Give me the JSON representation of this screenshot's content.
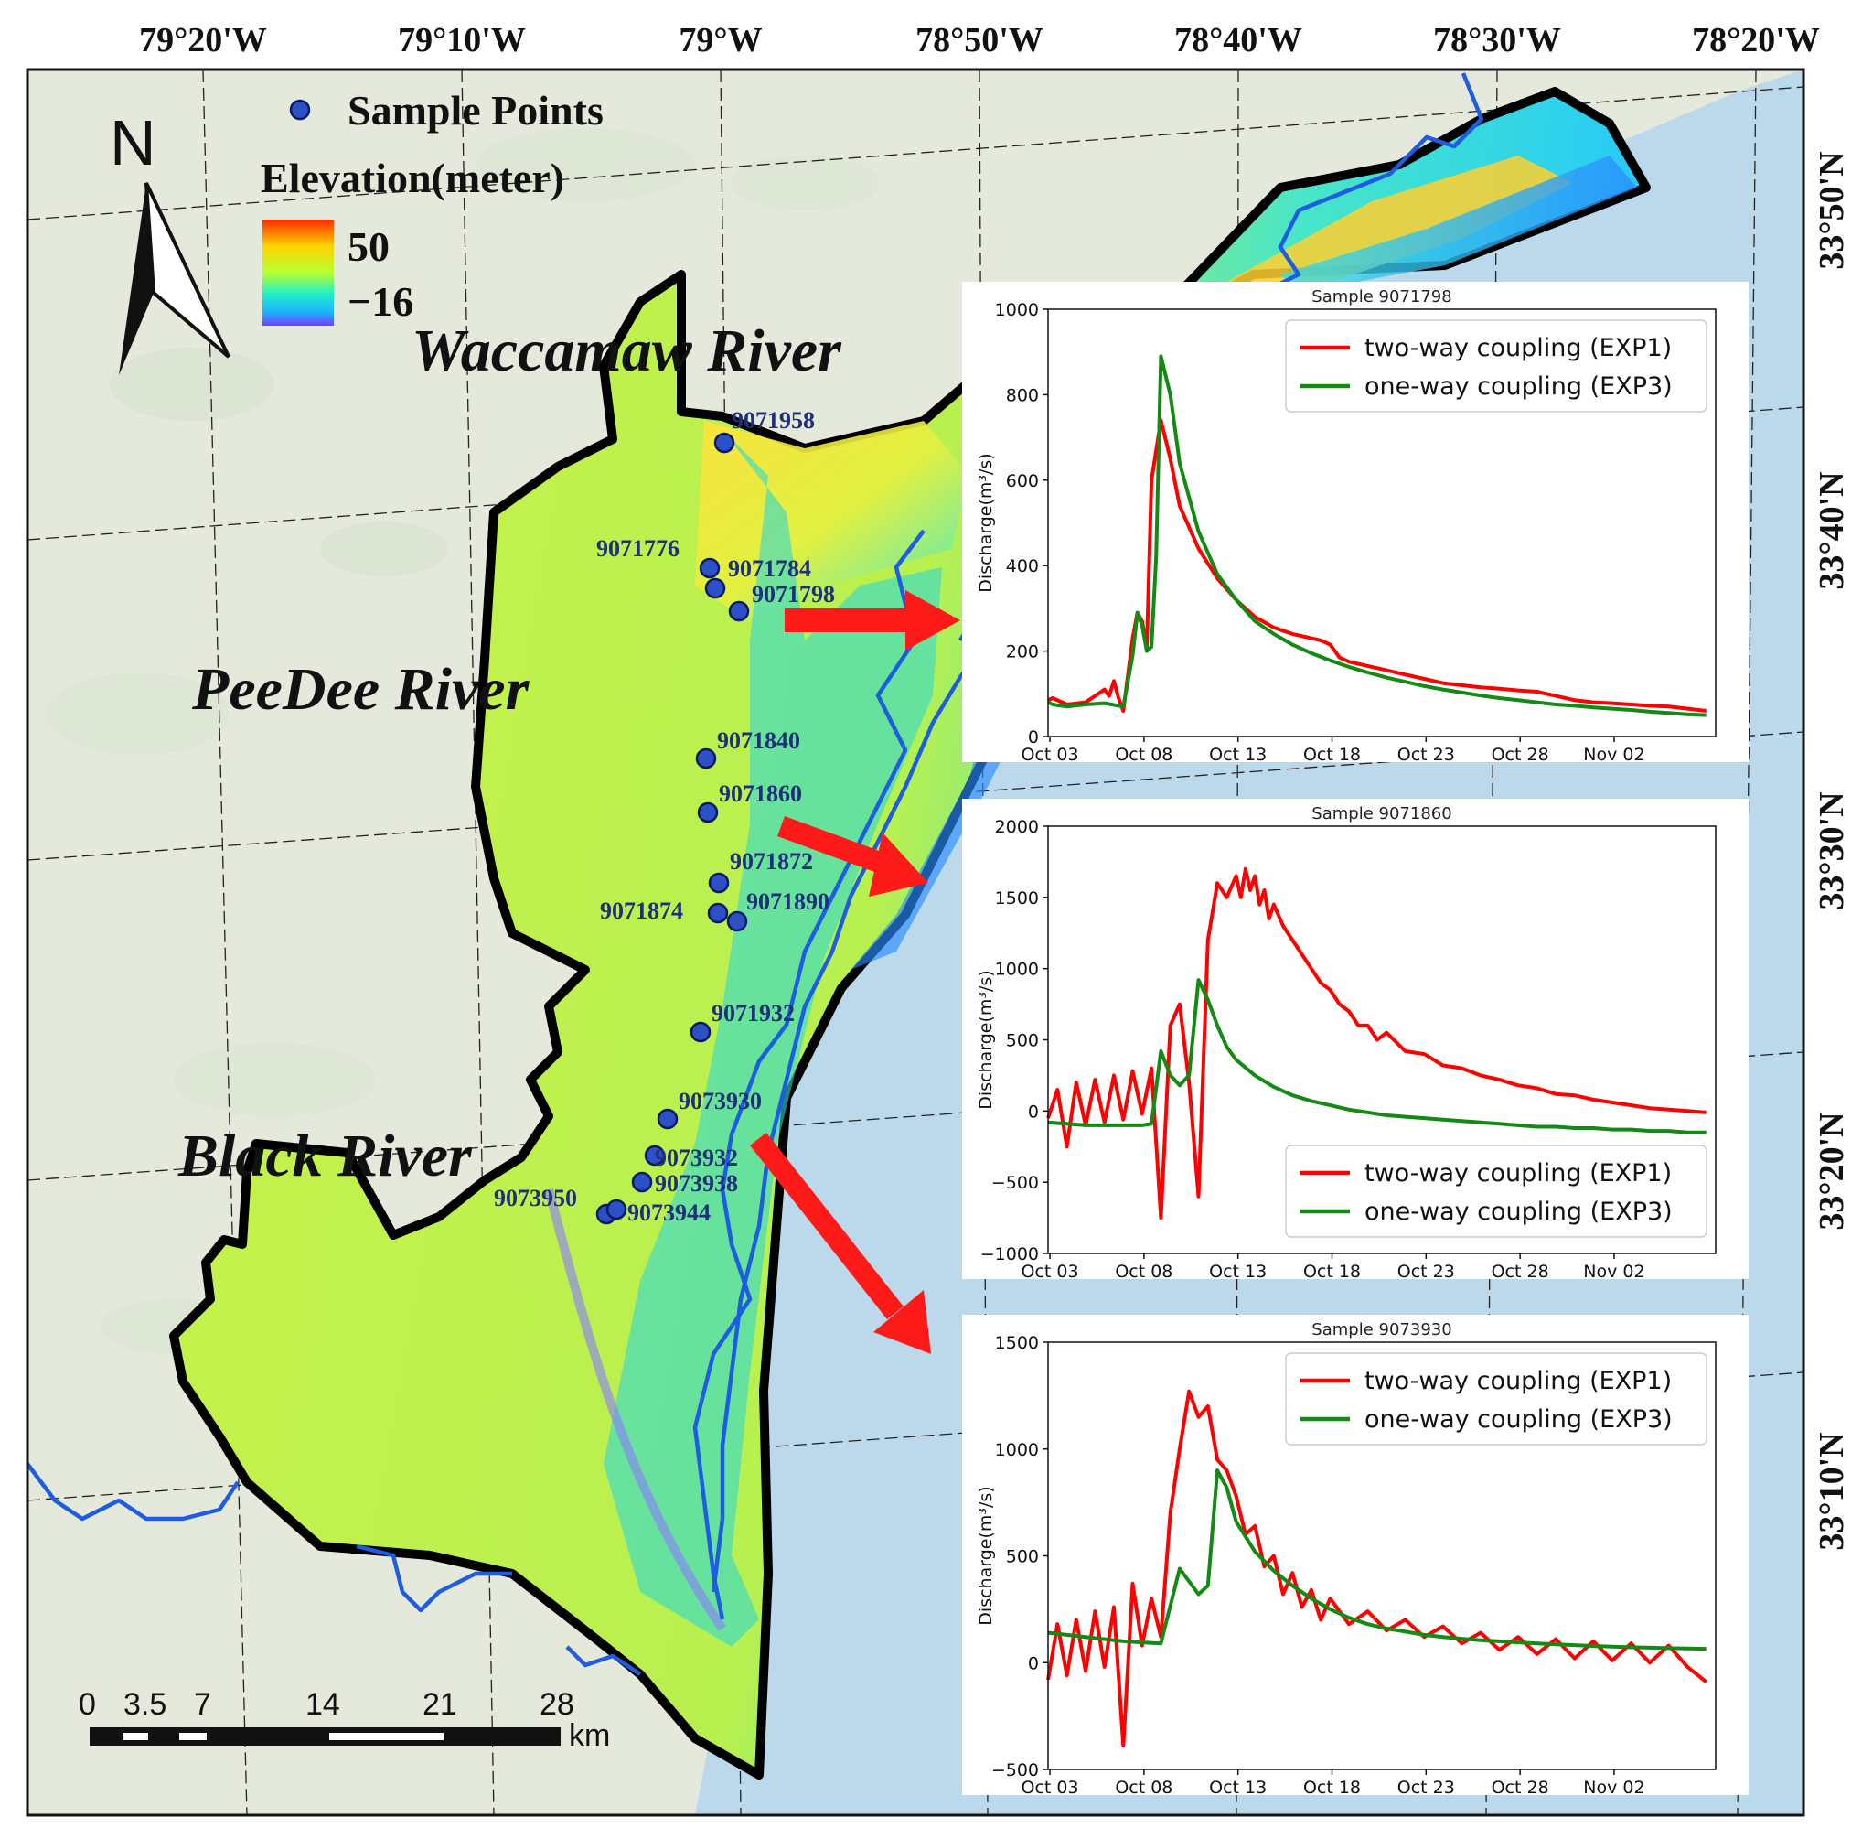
{
  "graticule": {
    "lon_labels": [
      "79°20'W",
      "79°10'W",
      "79°W",
      "78°50'W",
      "78°40'W",
      "78°30'W",
      "78°20'W"
    ],
    "lat_labels": [
      "33°50'N",
      "33°40'N",
      "33°30'N",
      "33°20'N",
      "33°10'N"
    ]
  },
  "legend": {
    "points_label": "Sample Points",
    "elevation_title": "Elevation(meter)",
    "elev_max": "50",
    "elev_min": "−16"
  },
  "rivers": [
    "Waccamaw River",
    "PeeDee River",
    "Black River"
  ],
  "sample_points": [
    {
      "id": "9071958"
    },
    {
      "id": "9071776"
    },
    {
      "id": "9071784"
    },
    {
      "id": "9071798"
    },
    {
      "id": "9071840"
    },
    {
      "id": "9071860"
    },
    {
      "id": "9071872"
    },
    {
      "id": "9071874"
    },
    {
      "id": "9071890"
    },
    {
      "id": "9071932"
    },
    {
      "id": "9073930"
    },
    {
      "id": "9073932"
    },
    {
      "id": "9073938"
    },
    {
      "id": "9073950"
    },
    {
      "id": "9073944"
    }
  ],
  "scale_bar": {
    "ticks": [
      "0",
      "3.5",
      "7",
      "14",
      "21",
      "28"
    ],
    "unit": "km"
  },
  "colors": {
    "two_way": "#ff0000",
    "one_way": "#138a13",
    "sample_point": "#2b50c8",
    "river_line": "#1e5ce0",
    "ocean": "#bcd9ec",
    "land": "#e4e9dc"
  },
  "chart_data": [
    {
      "type": "line",
      "title": "Sample 9071798",
      "xlabel": "",
      "ylabel": "Discharge(m³/s)",
      "x_ticks": [
        "Oct 03",
        "Oct 08",
        "Oct 13",
        "Oct 18",
        "Oct 23",
        "Oct 28",
        "Nov 02"
      ],
      "ylim": [
        0,
        1000
      ],
      "y_ticks": [
        0,
        200,
        400,
        600,
        800,
        1000
      ],
      "legend_position": "upper-right",
      "series": [
        {
          "name": "two-way coupling (EXP1)",
          "color": "#ff0000",
          "x": [
            0,
            0.5,
            2,
            4,
            5,
            6,
            6.5,
            7,
            7.5,
            8,
            9,
            9.5,
            10,
            10.5,
            11,
            12,
            13,
            14,
            16,
            18,
            20,
            22,
            24,
            26,
            28,
            29,
            30,
            30.5,
            31,
            32,
            34,
            36,
            38,
            40,
            42,
            44,
            46,
            48,
            50,
            52,
            54,
            56,
            58,
            60,
            62,
            64,
            66,
            68,
            70
          ],
          "y": [
            85,
            90,
            75,
            80,
            95,
            110,
            95,
            130,
            90,
            60,
            230,
            290,
            270,
            210,
            600,
            740,
            650,
            540,
            440,
            370,
            320,
            280,
            255,
            240,
            230,
            225,
            215,
            200,
            185,
            175,
            165,
            155,
            145,
            135,
            125,
            120,
            115,
            112,
            108,
            105,
            95,
            85,
            80,
            78,
            75,
            72,
            70,
            65,
            60
          ]
        },
        {
          "name": "one-way coupling (EXP3)",
          "color": "#138a13",
          "x": [
            0,
            0.5,
            2,
            4,
            6,
            8,
            9,
            9.5,
            10,
            10.5,
            11,
            11.5,
            12,
            13,
            14,
            16,
            18,
            20,
            22,
            24,
            26,
            28,
            30,
            32,
            34,
            36,
            38,
            40,
            42,
            44,
            46,
            48,
            50,
            52,
            54,
            56,
            58,
            60,
            62,
            64,
            66,
            68,
            70
          ],
          "y": [
            80,
            75,
            70,
            75,
            78,
            70,
            190,
            290,
            260,
            200,
            210,
            420,
            890,
            800,
            640,
            480,
            380,
            320,
            270,
            240,
            215,
            195,
            178,
            163,
            150,
            138,
            128,
            118,
            110,
            103,
            96,
            90,
            85,
            80,
            75,
            72,
            68,
            65,
            62,
            58,
            55,
            52,
            50
          ]
        }
      ]
    },
    {
      "type": "line",
      "title": "Sample 9071860",
      "xlabel": "",
      "ylabel": "Discharge(m³/s)",
      "x_ticks": [
        "Oct 03",
        "Oct 08",
        "Oct 13",
        "Oct 18",
        "Oct 23",
        "Oct 28",
        "Nov 02"
      ],
      "ylim": [
        -1000,
        2000
      ],
      "y_ticks": [
        -1000,
        -500,
        0,
        500,
        1000,
        1500,
        2000
      ],
      "legend_position": "lower-right",
      "series": [
        {
          "name": "two-way coupling (EXP1)",
          "color": "#ff0000",
          "x": [
            0,
            1,
            2,
            3,
            4,
            5,
            6,
            7,
            8,
            9,
            10,
            11,
            12,
            13,
            14,
            15,
            16,
            17,
            18,
            19,
            20,
            20.5,
            21,
            21.5,
            22,
            22.5,
            23,
            23.5,
            24,
            25,
            26,
            27,
            28,
            29,
            30,
            31,
            32,
            33,
            34,
            35,
            36,
            38,
            40,
            42,
            44,
            46,
            48,
            50,
            52,
            54,
            56,
            58,
            60,
            62,
            64,
            66,
            68,
            70
          ],
          "y": [
            -50,
            150,
            -250,
            200,
            -100,
            220,
            -80,
            250,
            -60,
            280,
            -20,
            300,
            -750,
            600,
            750,
            200,
            -600,
            1200,
            1600,
            1500,
            1650,
            1500,
            1700,
            1550,
            1650,
            1450,
            1550,
            1350,
            1450,
            1300,
            1200,
            1100,
            1000,
            900,
            850,
            750,
            700,
            600,
            600,
            500,
            550,
            420,
            400,
            320,
            300,
            250,
            220,
            180,
            160,
            120,
            110,
            80,
            60,
            40,
            20,
            10,
            0,
            -10
          ]
        },
        {
          "name": "one-way coupling (EXP3)",
          "color": "#138a13",
          "x": [
            0,
            2,
            4,
            6,
            8,
            10,
            11,
            12,
            13,
            14,
            15,
            16,
            17,
            18,
            19,
            20,
            22,
            24,
            26,
            28,
            30,
            32,
            34,
            36,
            38,
            40,
            42,
            44,
            46,
            48,
            50,
            52,
            54,
            56,
            58,
            60,
            62,
            64,
            66,
            68,
            70
          ],
          "y": [
            -80,
            -90,
            -100,
            -100,
            -100,
            -100,
            -90,
            420,
            250,
            180,
            250,
            920,
            780,
            600,
            450,
            360,
            250,
            170,
            110,
            70,
            40,
            10,
            -10,
            -30,
            -40,
            -50,
            -60,
            -70,
            -80,
            -90,
            -100,
            -110,
            -110,
            -120,
            -120,
            -130,
            -130,
            -140,
            -140,
            -150,
            -150
          ]
        }
      ]
    },
    {
      "type": "line",
      "title": "Sample 9073930",
      "xlabel": "",
      "ylabel": "Discharge(m³/s)",
      "x_ticks": [
        "Oct 03",
        "Oct 08",
        "Oct 13",
        "Oct 18",
        "Oct 23",
        "Oct 28",
        "Nov 02"
      ],
      "ylim": [
        -500,
        1500
      ],
      "y_ticks": [
        -500,
        0,
        500,
        1000,
        1500
      ],
      "legend_position": "upper-right",
      "series": [
        {
          "name": "two-way coupling (EXP1)",
          "color": "#ff0000",
          "x": [
            0,
            1,
            2,
            3,
            4,
            5,
            6,
            7,
            8,
            9,
            10,
            11,
            12,
            13,
            14,
            15,
            16,
            17,
            18,
            19,
            20,
            21,
            22,
            23,
            24,
            25,
            26,
            27,
            28,
            29,
            30,
            32,
            34,
            36,
            38,
            40,
            42,
            44,
            46,
            48,
            50,
            52,
            54,
            56,
            58,
            60,
            62,
            64,
            66,
            68,
            70
          ],
          "y": [
            -80,
            180,
            -60,
            200,
            -40,
            240,
            -20,
            260,
            -390,
            370,
            80,
            300,
            120,
            700,
            1000,
            1270,
            1150,
            1200,
            950,
            900,
            780,
            600,
            640,
            450,
            500,
            320,
            420,
            260,
            340,
            200,
            300,
            180,
            240,
            150,
            200,
            120,
            170,
            90,
            140,
            60,
            120,
            40,
            110,
            20,
            100,
            10,
            90,
            0,
            80,
            -20,
            -90
          ]
        },
        {
          "name": "one-way coupling (EXP3)",
          "color": "#138a13",
          "x": [
            0,
            2,
            4,
            6,
            8,
            10,
            12,
            14,
            15,
            16,
            17,
            18,
            19,
            20,
            22,
            24,
            26,
            28,
            30,
            32,
            34,
            36,
            38,
            40,
            42,
            44,
            46,
            48,
            50,
            52,
            54,
            56,
            58,
            60,
            62,
            64,
            66,
            68,
            70
          ],
          "y": [
            140,
            130,
            120,
            110,
            100,
            95,
            90,
            440,
            380,
            320,
            360,
            900,
            820,
            660,
            520,
            430,
            360,
            300,
            250,
            210,
            180,
            160,
            145,
            130,
            120,
            112,
            105,
            100,
            95,
            90,
            86,
            82,
            78,
            75,
            72,
            70,
            68,
            66,
            65
          ]
        }
      ]
    }
  ]
}
